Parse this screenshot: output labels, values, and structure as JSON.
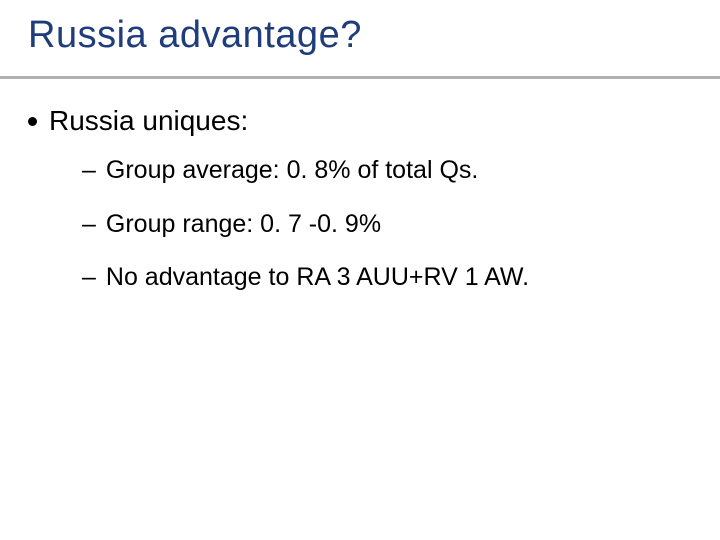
{
  "slide": {
    "title": "Russia advantage?",
    "title_color": "#1f3d7a",
    "rule_color": "#b0b0b0",
    "background_color": "#ffffff",
    "font_family": "Verdana",
    "title_fontsize": 38,
    "body_fontsize_l1": 28,
    "body_fontsize_l2": 25,
    "bullets": [
      {
        "text": "Russia uniques:",
        "subitems": [
          "Group average: 0. 8% of total Qs.",
          "Group range: 0. 7 -0. 9%",
          "No advantage to RA 3 AUU+RV 1 AW."
        ]
      }
    ]
  }
}
